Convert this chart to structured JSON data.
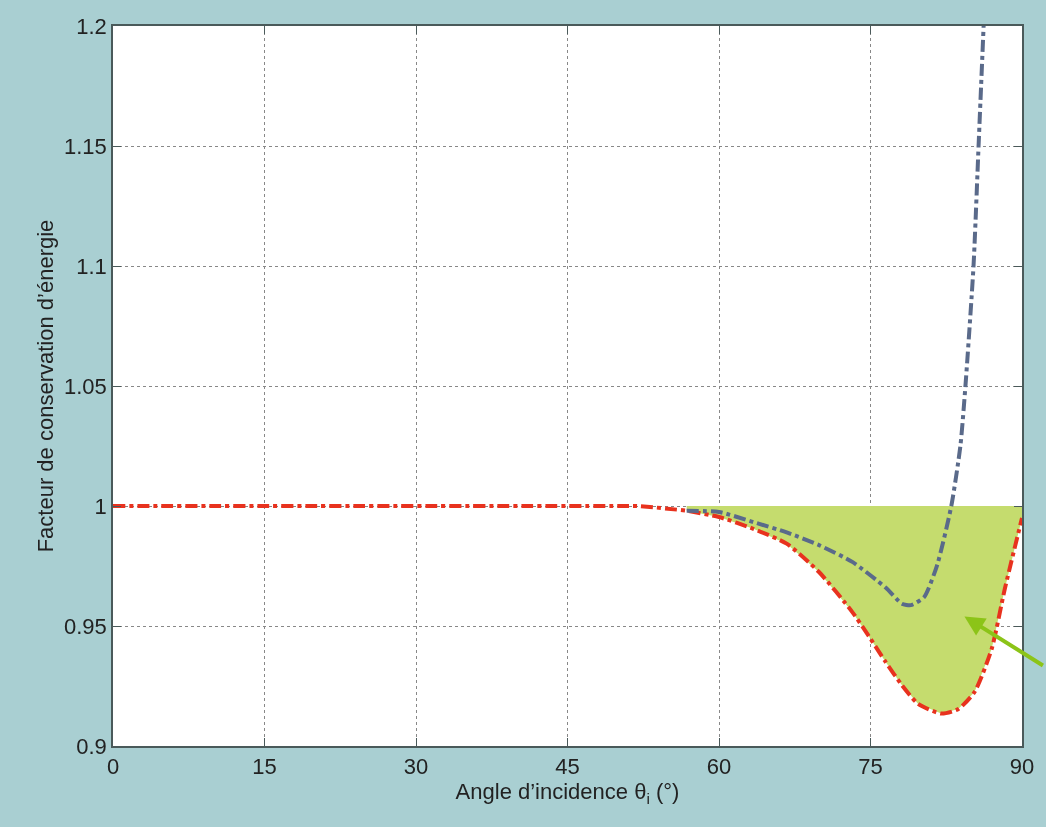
{
  "chart_data": {
    "type": "line",
    "xlabel": "Angle d’incidence θ$_{i}$ (°)",
    "ylabel": "Facteur de conservation d’énergie",
    "xlim": [
      0,
      90
    ],
    "ylim": [
      0.9,
      1.2
    ],
    "xticks": [
      0,
      15,
      30,
      45,
      60,
      75,
      90
    ],
    "yticks": [
      0.9,
      0.95,
      1,
      1.05,
      1.1,
      1.15,
      1.2
    ],
    "grid": true,
    "line_style": "dashed",
    "marker": "none",
    "series": [
      {
        "color": "#e8321e",
        "x": [
          0,
          50,
          51.9,
          56.8,
          60,
          63.4,
          66.7,
          69.9,
          73.2,
          75,
          76.5,
          78.1,
          79.7,
          82.0,
          83.7,
          85.3,
          87.0,
          88.3,
          90
        ],
        "values": [
          1,
          1,
          1,
          0.998,
          0.9954,
          0.9905,
          0.9843,
          0.9725,
          0.9558,
          0.9447,
          0.935,
          0.9254,
          0.9176,
          0.9135,
          0.9154,
          0.9225,
          0.9405,
          0.9655,
          0.995
        ],
        "lower": [
          null,
          null,
          null,
          0.998,
          0.9954,
          0.9905,
          0.9843,
          0.9725,
          0.9558,
          0.9447,
          0.935,
          0.9254,
          0.9176,
          0.9135,
          0.9154,
          0.9225,
          0.9405,
          0.9655,
          0.995
        ],
        "upper": [
          null,
          null,
          null,
          1,
          1,
          1,
          1,
          1,
          1,
          1,
          1,
          1,
          1,
          1,
          1,
          1,
          1,
          1,
          1
        ]
      },
      {
        "color": "#5a6a8a",
        "x": [
          56.8,
          60,
          63.4,
          66.7,
          69.9,
          73.2,
          76.5,
          78.1,
          79.0,
          80.3,
          81.6,
          83.0,
          83.9,
          84.4,
          85.2,
          85.7,
          86.2
        ],
        "values": [
          0.998,
          0.9975,
          0.9933,
          0.989,
          0.9837,
          0.9767,
          0.966,
          0.9593,
          0.9587,
          0.962,
          0.9754,
          1.0,
          1.025,
          1.05,
          1.1,
          1.15,
          1.2
        ]
      }
    ]
  }
}
